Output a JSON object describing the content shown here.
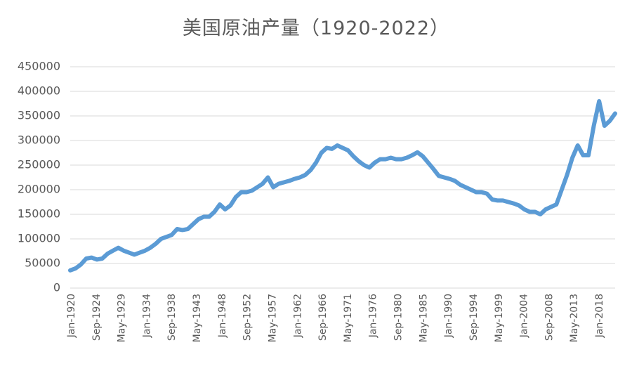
{
  "chart_data": {
    "type": "line",
    "title": "美国原油产量（1920-2022）",
    "xlabel": "",
    "ylabel": "",
    "ylim": [
      0,
      450000
    ],
    "yticks": [
      "0",
      "50000",
      "100000",
      "150000",
      "200000",
      "250000",
      "300000",
      "350000",
      "400000",
      "450000"
    ],
    "xticks": [
      "Jan-1920",
      "Sep-1924",
      "May-1929",
      "Jan-1934",
      "Sep-1938",
      "May-1943",
      "Jan-1948",
      "Sep-1952",
      "May-1957",
      "Jan-1962",
      "Sep-1966",
      "May-1971",
      "Jan-1976",
      "Sep-1980",
      "May-1985",
      "Jan-1990",
      "Sep-1994",
      "May-1999",
      "Jan-2004",
      "Sep-2008",
      "May-2013",
      "Jan-2018"
    ],
    "grid": true,
    "legend": "none",
    "color": "#5b9bd5",
    "series": [
      {
        "x": [
          "1920",
          "1921",
          "1922",
          "1923",
          "1924",
          "1925",
          "1926",
          "1927",
          "1928",
          "1929",
          "1930",
          "1931",
          "1932",
          "1933",
          "1934",
          "1935",
          "1936",
          "1937",
          "1938",
          "1939",
          "1940",
          "1941",
          "1942",
          "1943",
          "1944",
          "1945",
          "1946",
          "1947",
          "1948",
          "1949",
          "1950",
          "1951",
          "1952",
          "1953",
          "1954",
          "1955",
          "1956",
          "1957",
          "1958",
          "1959",
          "1960",
          "1961",
          "1962",
          "1963",
          "1964",
          "1965",
          "1966",
          "1967",
          "1968",
          "1969",
          "1970",
          "1971",
          "1972",
          "1973",
          "1974",
          "1975",
          "1976",
          "1977",
          "1978",
          "1979",
          "1980",
          "1981",
          "1982",
          "1983",
          "1984",
          "1985",
          "1986",
          "1987",
          "1988",
          "1989",
          "1990",
          "1991",
          "1992",
          "1993",
          "1994",
          "1995",
          "1996",
          "1997",
          "1998",
          "1999",
          "2000",
          "2001",
          "2002",
          "2003",
          "2004",
          "2005",
          "2006",
          "2007",
          "2008",
          "2009",
          "2010",
          "2011",
          "2012",
          "2013",
          "2014",
          "2015",
          "2016",
          "2017",
          "2018",
          "2019",
          "2020",
          "2021",
          "2022"
        ],
        "values": [
          36000,
          40000,
          48000,
          60000,
          62000,
          58000,
          60000,
          70000,
          76000,
          82000,
          76000,
          72000,
          68000,
          72000,
          76000,
          82000,
          90000,
          100000,
          104000,
          108000,
          120000,
          118000,
          120000,
          130000,
          140000,
          145000,
          145000,
          155000,
          170000,
          160000,
          168000,
          185000,
          195000,
          195000,
          198000,
          205000,
          212000,
          225000,
          205000,
          212000,
          215000,
          218000,
          222000,
          225000,
          230000,
          240000,
          255000,
          275000,
          285000,
          283000,
          290000,
          285000,
          280000,
          268000,
          258000,
          250000,
          245000,
          255000,
          262000,
          262000,
          265000,
          262000,
          262000,
          265000,
          270000,
          276000,
          268000,
          255000,
          242000,
          228000,
          225000,
          222000,
          218000,
          210000,
          205000,
          200000,
          195000,
          195000,
          192000,
          180000,
          178000,
          178000,
          175000,
          172000,
          168000,
          160000,
          155000,
          155000,
          150000,
          160000,
          165000,
          170000,
          200000,
          230000,
          265000,
          290000,
          270000,
          270000,
          330000,
          380000,
          330000,
          340000,
          355000
        ]
      }
    ]
  }
}
